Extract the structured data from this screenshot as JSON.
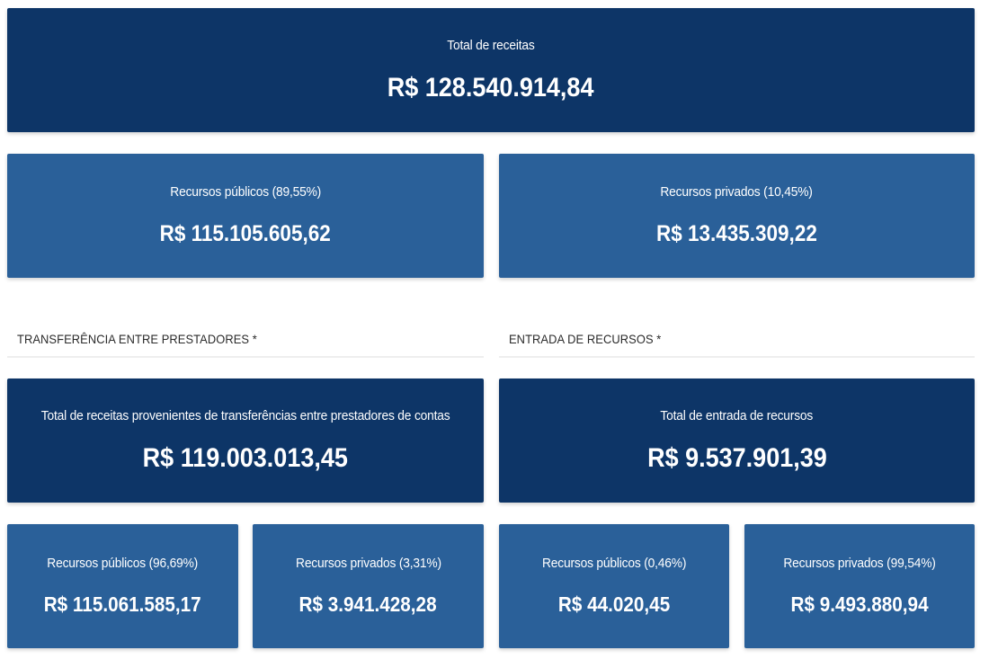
{
  "total": {
    "label": "Total de receitas",
    "value": "R$ 128.540.914,84"
  },
  "summary": {
    "public": {
      "label": "Recursos públicos (89,55%)",
      "value": "R$ 115.105.605,62"
    },
    "private": {
      "label": "Recursos privados (10,45%)",
      "value": "R$ 13.435.309,22"
    }
  },
  "transfer": {
    "title": "TRANSFERÊNCIA ENTRE PRESTADORES *",
    "total": {
      "label": "Total de receitas provenientes de transferências entre prestadores de contas",
      "value": "R$ 119.003.013,45"
    },
    "public": {
      "label": "Recursos públicos (96,69%)",
      "value": "R$ 115.061.585,17"
    },
    "private": {
      "label": "Recursos privados (3,31%)",
      "value": "R$ 3.941.428,28"
    }
  },
  "entry": {
    "title": "ENTRADA DE RECURSOS *",
    "total": {
      "label": "Total de entrada de recursos",
      "value": "R$ 9.537.901,39"
    },
    "public": {
      "label": "Recursos públicos (0,46%)",
      "value": "R$ 44.020,45"
    },
    "private": {
      "label": "Recursos privados (99,54%)",
      "value": "R$ 9.493.880,94"
    }
  },
  "colors": {
    "dark_card": "#0d3567",
    "mid_card": "#2a6099"
  }
}
